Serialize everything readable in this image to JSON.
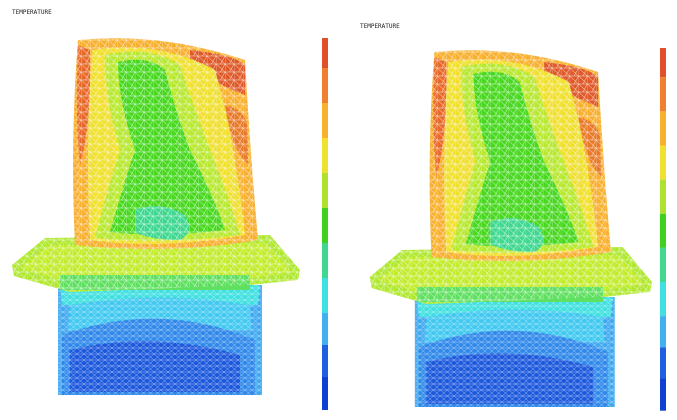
{
  "panels": [
    {
      "title": "TEMPERATURE"
    },
    {
      "title": "TEMPERATURE"
    }
  ]
}
